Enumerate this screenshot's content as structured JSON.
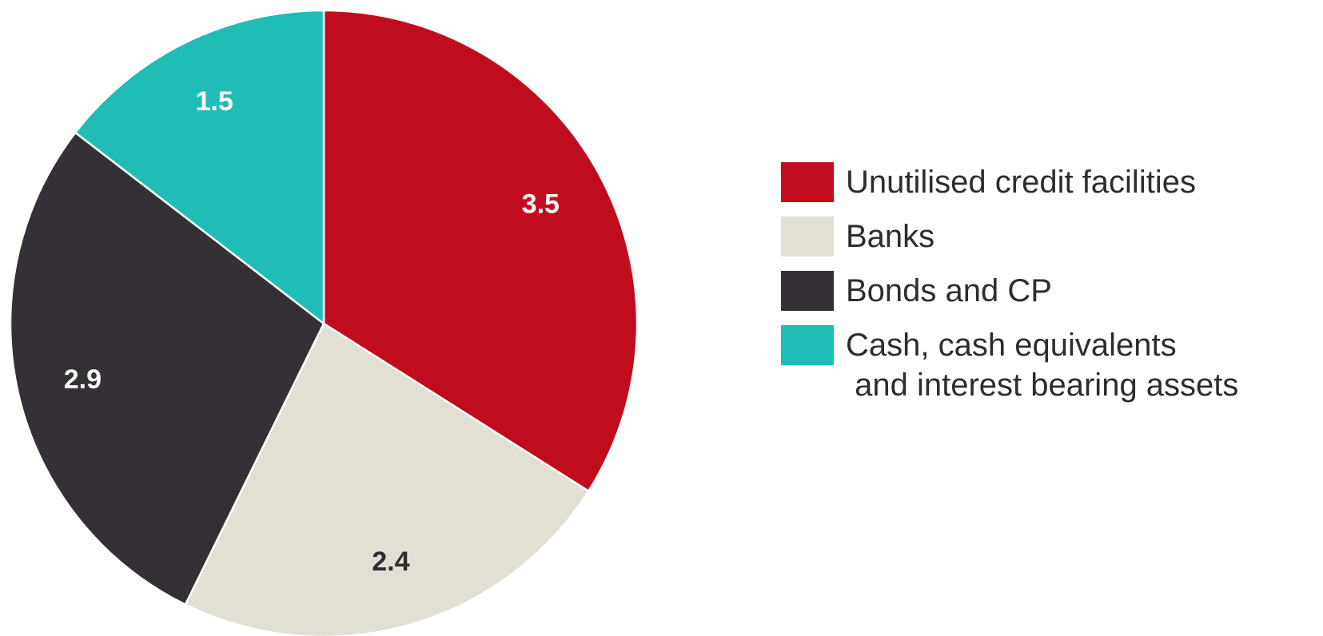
{
  "chart_data": {
    "type": "pie",
    "slices": [
      {
        "label": "Unutilised credit facilities",
        "value": 3.5,
        "display": "3.5",
        "color": "#c00d1e",
        "label_color": "#ffffff"
      },
      {
        "label": "Banks",
        "value": 2.4,
        "display": "2.4",
        "color": "#e2e0d5",
        "label_color": "#2f2b30"
      },
      {
        "label": "Bonds and CP",
        "value": 2.9,
        "display": "2.9",
        "color": "#343035",
        "label_color": "#ffffff"
      },
      {
        "label": "Cash, cash equivalents and interest bearing assets",
        "value": 1.5,
        "display": "1.5",
        "color": "#20bdb6",
        "label_color": "#ffffff"
      }
    ],
    "legend": {
      "placement": "right",
      "entries": [
        {
          "lines": [
            "Unutilised credit facilities"
          ]
        },
        {
          "lines": [
            "Banks"
          ]
        },
        {
          "lines": [
            "Bonds and CP"
          ]
        },
        {
          "lines": [
            "Cash, cash equivalents",
            " and interest bearing assets"
          ]
        }
      ]
    },
    "start_angle": "top",
    "direction": "clockwise"
  }
}
